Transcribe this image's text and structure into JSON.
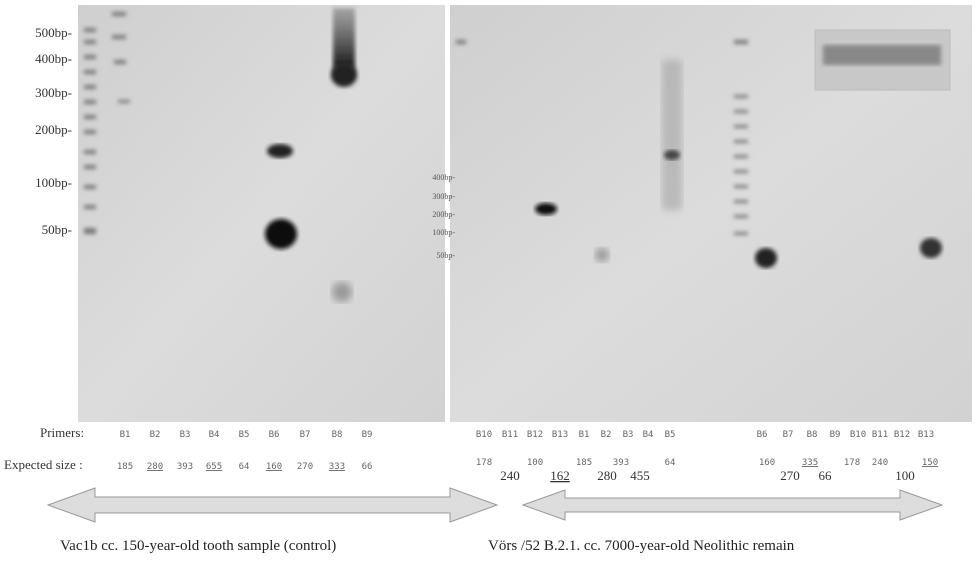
{
  "left_gel": {
    "ladder_labels": [
      "500bp-",
      "400bp-",
      "300bp-",
      "200bp-",
      "100bp-",
      "50bp-"
    ],
    "primers": [
      "B1",
      "B2",
      "B3",
      "B4",
      "B5",
      "B6",
      "B7",
      "B8",
      "B9"
    ],
    "expected_sizes": [
      "185",
      "280",
      "393",
      "655",
      "64",
      "160",
      "270",
      "333",
      "66"
    ],
    "caption": "Vac1b cc. 150-year-old tooth sample (control)"
  },
  "right_gel": {
    "ladder_labels": [
      "400bp-",
      "300bp-",
      "200bp-",
      "100bp-",
      "50bp-"
    ],
    "primers": [
      "B10",
      "B11",
      "B12",
      "B13",
      "B1",
      "B2",
      "B3",
      "B4",
      "B5",
      "B6",
      "B7",
      "B8",
      "B9",
      "B10",
      "B11",
      "B12",
      "B13"
    ],
    "expected_sizes_top": [
      "178",
      "100",
      "185",
      "393",
      "64",
      "160",
      "335",
      "178",
      "240",
      "150"
    ],
    "expected_sizes_bottom": [
      "240",
      "162",
      "280",
      "455",
      "270",
      "66",
      "100"
    ],
    "caption": "Vörs /52 B.2.1. cc. 7000-year-old Neolithic remain"
  },
  "row_labels": {
    "primers": "Primers:",
    "expected_size": "Expected size :"
  }
}
